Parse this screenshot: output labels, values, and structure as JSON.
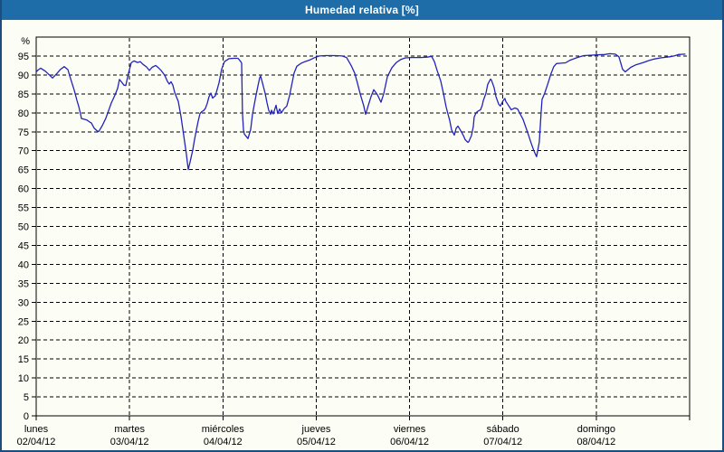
{
  "header": {
    "title": "Humedad relativa [%]"
  },
  "colors": {
    "titlebar_bg": "#1f6da8",
    "titlebar_text": "#ffffff",
    "page_bg": "#fcfdf5",
    "page_border": "#1b4e7e",
    "line": "#2323bb",
    "grid": "#000000",
    "text": "#000000"
  },
  "chart_data": {
    "type": "line",
    "title": "Humedad relativa [%]",
    "xlabel": "",
    "ylabel": "%",
    "ylim": [
      0,
      100
    ],
    "y_tick_step": 5,
    "y_ticks": [
      0,
      5,
      10,
      15,
      20,
      25,
      30,
      35,
      40,
      45,
      50,
      55,
      60,
      65,
      70,
      75,
      80,
      85,
      90,
      95
    ],
    "grid": "dashed",
    "legend_position": "none",
    "x_days": [
      {
        "name": "lunes",
        "date": "02/04/12"
      },
      {
        "name": "martes",
        "date": "03/04/12"
      },
      {
        "name": "miércoles",
        "date": "04/04/12"
      },
      {
        "name": "jueves",
        "date": "05/04/12"
      },
      {
        "name": "viernes",
        "date": "06/04/12"
      },
      {
        "name": "sábado",
        "date": "07/04/12"
      },
      {
        "name": "domingo",
        "date": "08/04/12"
      }
    ],
    "x_unit": "days_since_monday_00h",
    "series": [
      {
        "name": "Humedad relativa",
        "color": "#2323bb",
        "points": [
          [
            0.0,
            90.8
          ],
          [
            0.019,
            91.3
          ],
          [
            0.048,
            91.8
          ],
          [
            0.097,
            91.0
          ],
          [
            0.145,
            89.9
          ],
          [
            0.175,
            89.2
          ],
          [
            0.223,
            90.4
          ],
          [
            0.262,
            91.5
          ],
          [
            0.301,
            92.2
          ],
          [
            0.339,
            91.4
          ],
          [
            0.368,
            89.0
          ],
          [
            0.407,
            86.0
          ],
          [
            0.436,
            83.3
          ],
          [
            0.456,
            81.7
          ],
          [
            0.475,
            79.7
          ],
          [
            0.485,
            78.5
          ],
          [
            0.514,
            78.3
          ],
          [
            0.543,
            78.1
          ],
          [
            0.572,
            77.6
          ],
          [
            0.591,
            77.3
          ],
          [
            0.62,
            76.0
          ],
          [
            0.65,
            75.3
          ],
          [
            0.669,
            75.0
          ],
          [
            0.708,
            76.6
          ],
          [
            0.747,
            78.6
          ],
          [
            0.776,
            80.6
          ],
          [
            0.805,
            82.6
          ],
          [
            0.843,
            84.6
          ],
          [
            0.873,
            86.5
          ],
          [
            0.892,
            88.8
          ],
          [
            0.94,
            87.3
          ],
          [
            0.96,
            87.2
          ],
          [
            0.989,
            90.5
          ],
          [
            1.018,
            93.2
          ],
          [
            1.047,
            93.7
          ],
          [
            1.086,
            93.3
          ],
          [
            1.115,
            93.5
          ],
          [
            1.144,
            92.8
          ],
          [
            1.183,
            92.1
          ],
          [
            1.212,
            91.2
          ],
          [
            1.241,
            92.0
          ],
          [
            1.28,
            92.5
          ],
          [
            1.309,
            91.9
          ],
          [
            1.338,
            91.2
          ],
          [
            1.377,
            89.9
          ],
          [
            1.406,
            88.3
          ],
          [
            1.425,
            87.6
          ],
          [
            1.445,
            88.2
          ],
          [
            1.464,
            87.3
          ],
          [
            1.483,
            85.4
          ],
          [
            1.522,
            83.0
          ],
          [
            1.551,
            79.0
          ],
          [
            1.58,
            74.0
          ],
          [
            1.609,
            69.0
          ],
          [
            1.629,
            65.0
          ],
          [
            1.648,
            67.0
          ],
          [
            1.677,
            70.2
          ],
          [
            1.697,
            73.0
          ],
          [
            1.716,
            75.5
          ],
          [
            1.735,
            77.8
          ],
          [
            1.755,
            79.8
          ],
          [
            1.774,
            80.3
          ],
          [
            1.794,
            80.6
          ],
          [
            1.813,
            81.2
          ],
          [
            1.832,
            82.5
          ],
          [
            1.852,
            84.3
          ],
          [
            1.871,
            85.2
          ],
          [
            1.89,
            83.9
          ],
          [
            1.92,
            84.5
          ],
          [
            1.958,
            87.9
          ],
          [
            1.987,
            91.5
          ],
          [
            2.017,
            93.5
          ],
          [
            2.065,
            94.3
          ],
          [
            2.114,
            94.4
          ],
          [
            2.162,
            94.4
          ],
          [
            2.191,
            93.5
          ],
          [
            2.201,
            93.1
          ],
          [
            2.21,
            80.0
          ],
          [
            2.22,
            75.6
          ],
          [
            2.23,
            74.4
          ],
          [
            2.249,
            73.8
          ],
          [
            2.269,
            73.2
          ],
          [
            2.298,
            75.6
          ],
          [
            2.317,
            79.6
          ],
          [
            2.346,
            83.5
          ],
          [
            2.375,
            87.1
          ],
          [
            2.395,
            89.3
          ],
          [
            2.404,
            89.7
          ],
          [
            2.424,
            87.9
          ],
          [
            2.453,
            85.1
          ],
          [
            2.472,
            82.7
          ],
          [
            2.491,
            80.7
          ],
          [
            2.511,
            79.6
          ],
          [
            2.521,
            80.7
          ],
          [
            2.54,
            79.7
          ],
          [
            2.569,
            82.0
          ],
          [
            2.588,
            79.8
          ],
          [
            2.608,
            81.0
          ],
          [
            2.627,
            80.0
          ],
          [
            2.656,
            81.1
          ],
          [
            2.685,
            81.8
          ],
          [
            2.714,
            84.5
          ],
          [
            2.734,
            87.0
          ],
          [
            2.763,
            90.5
          ],
          [
            2.792,
            92.3
          ],
          [
            2.84,
            93.1
          ],
          [
            2.879,
            93.5
          ],
          [
            2.937,
            94.0
          ],
          [
            2.986,
            94.6
          ],
          [
            3.034,
            95.0
          ],
          [
            3.102,
            95.1
          ],
          [
            3.199,
            95.1
          ],
          [
            3.277,
            95.0
          ],
          [
            3.325,
            94.6
          ],
          [
            3.374,
            92.5
          ],
          [
            3.412,
            90.5
          ],
          [
            3.442,
            87.8
          ],
          [
            3.471,
            85.0
          ],
          [
            3.51,
            81.8
          ],
          [
            3.529,
            79.6
          ],
          [
            3.558,
            82.0
          ],
          [
            3.587,
            84.3
          ],
          [
            3.616,
            86.1
          ],
          [
            3.655,
            84.8
          ],
          [
            3.694,
            82.8
          ],
          [
            3.723,
            85.0
          ],
          [
            3.762,
            89.5
          ],
          [
            3.81,
            91.9
          ],
          [
            3.859,
            93.3
          ],
          [
            3.907,
            94.1
          ],
          [
            3.956,
            94.5
          ],
          [
            4.024,
            94.6
          ],
          [
            4.121,
            94.6
          ],
          [
            4.189,
            94.7
          ],
          [
            4.237,
            94.9
          ],
          [
            4.266,
            93.5
          ],
          [
            4.295,
            91.2
          ],
          [
            4.334,
            88.4
          ],
          [
            4.363,
            85.1
          ],
          [
            4.392,
            81.5
          ],
          [
            4.431,
            77.9
          ],
          [
            4.45,
            75.5
          ],
          [
            4.479,
            74.1
          ],
          [
            4.499,
            75.9
          ],
          [
            4.518,
            76.5
          ],
          [
            4.528,
            76.1
          ],
          [
            4.557,
            74.9
          ],
          [
            4.576,
            74.0
          ],
          [
            4.596,
            72.9
          ],
          [
            4.625,
            72.2
          ],
          [
            4.634,
            72.4
          ],
          [
            4.663,
            74.0
          ],
          [
            4.683,
            76.4
          ],
          [
            4.692,
            78.8
          ],
          [
            4.712,
            80.0
          ],
          [
            4.731,
            80.4
          ],
          [
            4.76,
            80.8
          ],
          [
            4.779,
            82.0
          ],
          [
            4.789,
            83.2
          ],
          [
            4.818,
            85.1
          ],
          [
            4.837,
            87.5
          ],
          [
            4.867,
            88.9
          ],
          [
            4.876,
            88.7
          ],
          [
            4.905,
            86.7
          ],
          [
            4.925,
            84.3
          ],
          [
            4.954,
            82.3
          ],
          [
            4.973,
            81.8
          ],
          [
            5.002,
            83.2
          ],
          [
            5.021,
            83.8
          ],
          [
            5.031,
            83.0
          ],
          [
            5.05,
            82.3
          ],
          [
            5.089,
            80.8
          ],
          [
            5.128,
            81.3
          ],
          [
            5.157,
            81.0
          ],
          [
            5.215,
            78.3
          ],
          [
            5.264,
            74.9
          ],
          [
            5.302,
            72.0
          ],
          [
            5.331,
            70.0
          ],
          [
            5.361,
            68.4
          ],
          [
            5.39,
            72.3
          ],
          [
            5.409,
            80.0
          ],
          [
            5.419,
            83.5
          ],
          [
            5.448,
            85.2
          ],
          [
            5.486,
            88.0
          ],
          [
            5.515,
            90.3
          ],
          [
            5.545,
            92.2
          ],
          [
            5.574,
            93.0
          ],
          [
            5.622,
            93.1
          ],
          [
            5.671,
            93.2
          ],
          [
            5.719,
            93.9
          ],
          [
            5.797,
            94.6
          ],
          [
            5.865,
            95.1
          ],
          [
            5.932,
            95.2
          ],
          [
            6.01,
            95.3
          ],
          [
            6.088,
            95.4
          ],
          [
            6.146,
            95.6
          ],
          [
            6.204,
            95.5
          ],
          [
            6.243,
            94.8
          ],
          [
            6.282,
            91.5
          ],
          [
            6.311,
            90.8
          ],
          [
            6.369,
            92.0
          ],
          [
            6.427,
            92.7
          ],
          [
            6.495,
            93.2
          ],
          [
            6.563,
            93.8
          ],
          [
            6.621,
            94.2
          ],
          [
            6.689,
            94.5
          ],
          [
            6.786,
            94.8
          ],
          [
            6.834,
            95.0
          ],
          [
            6.883,
            95.4
          ],
          [
            6.951,
            95.5
          ]
        ]
      }
    ]
  }
}
